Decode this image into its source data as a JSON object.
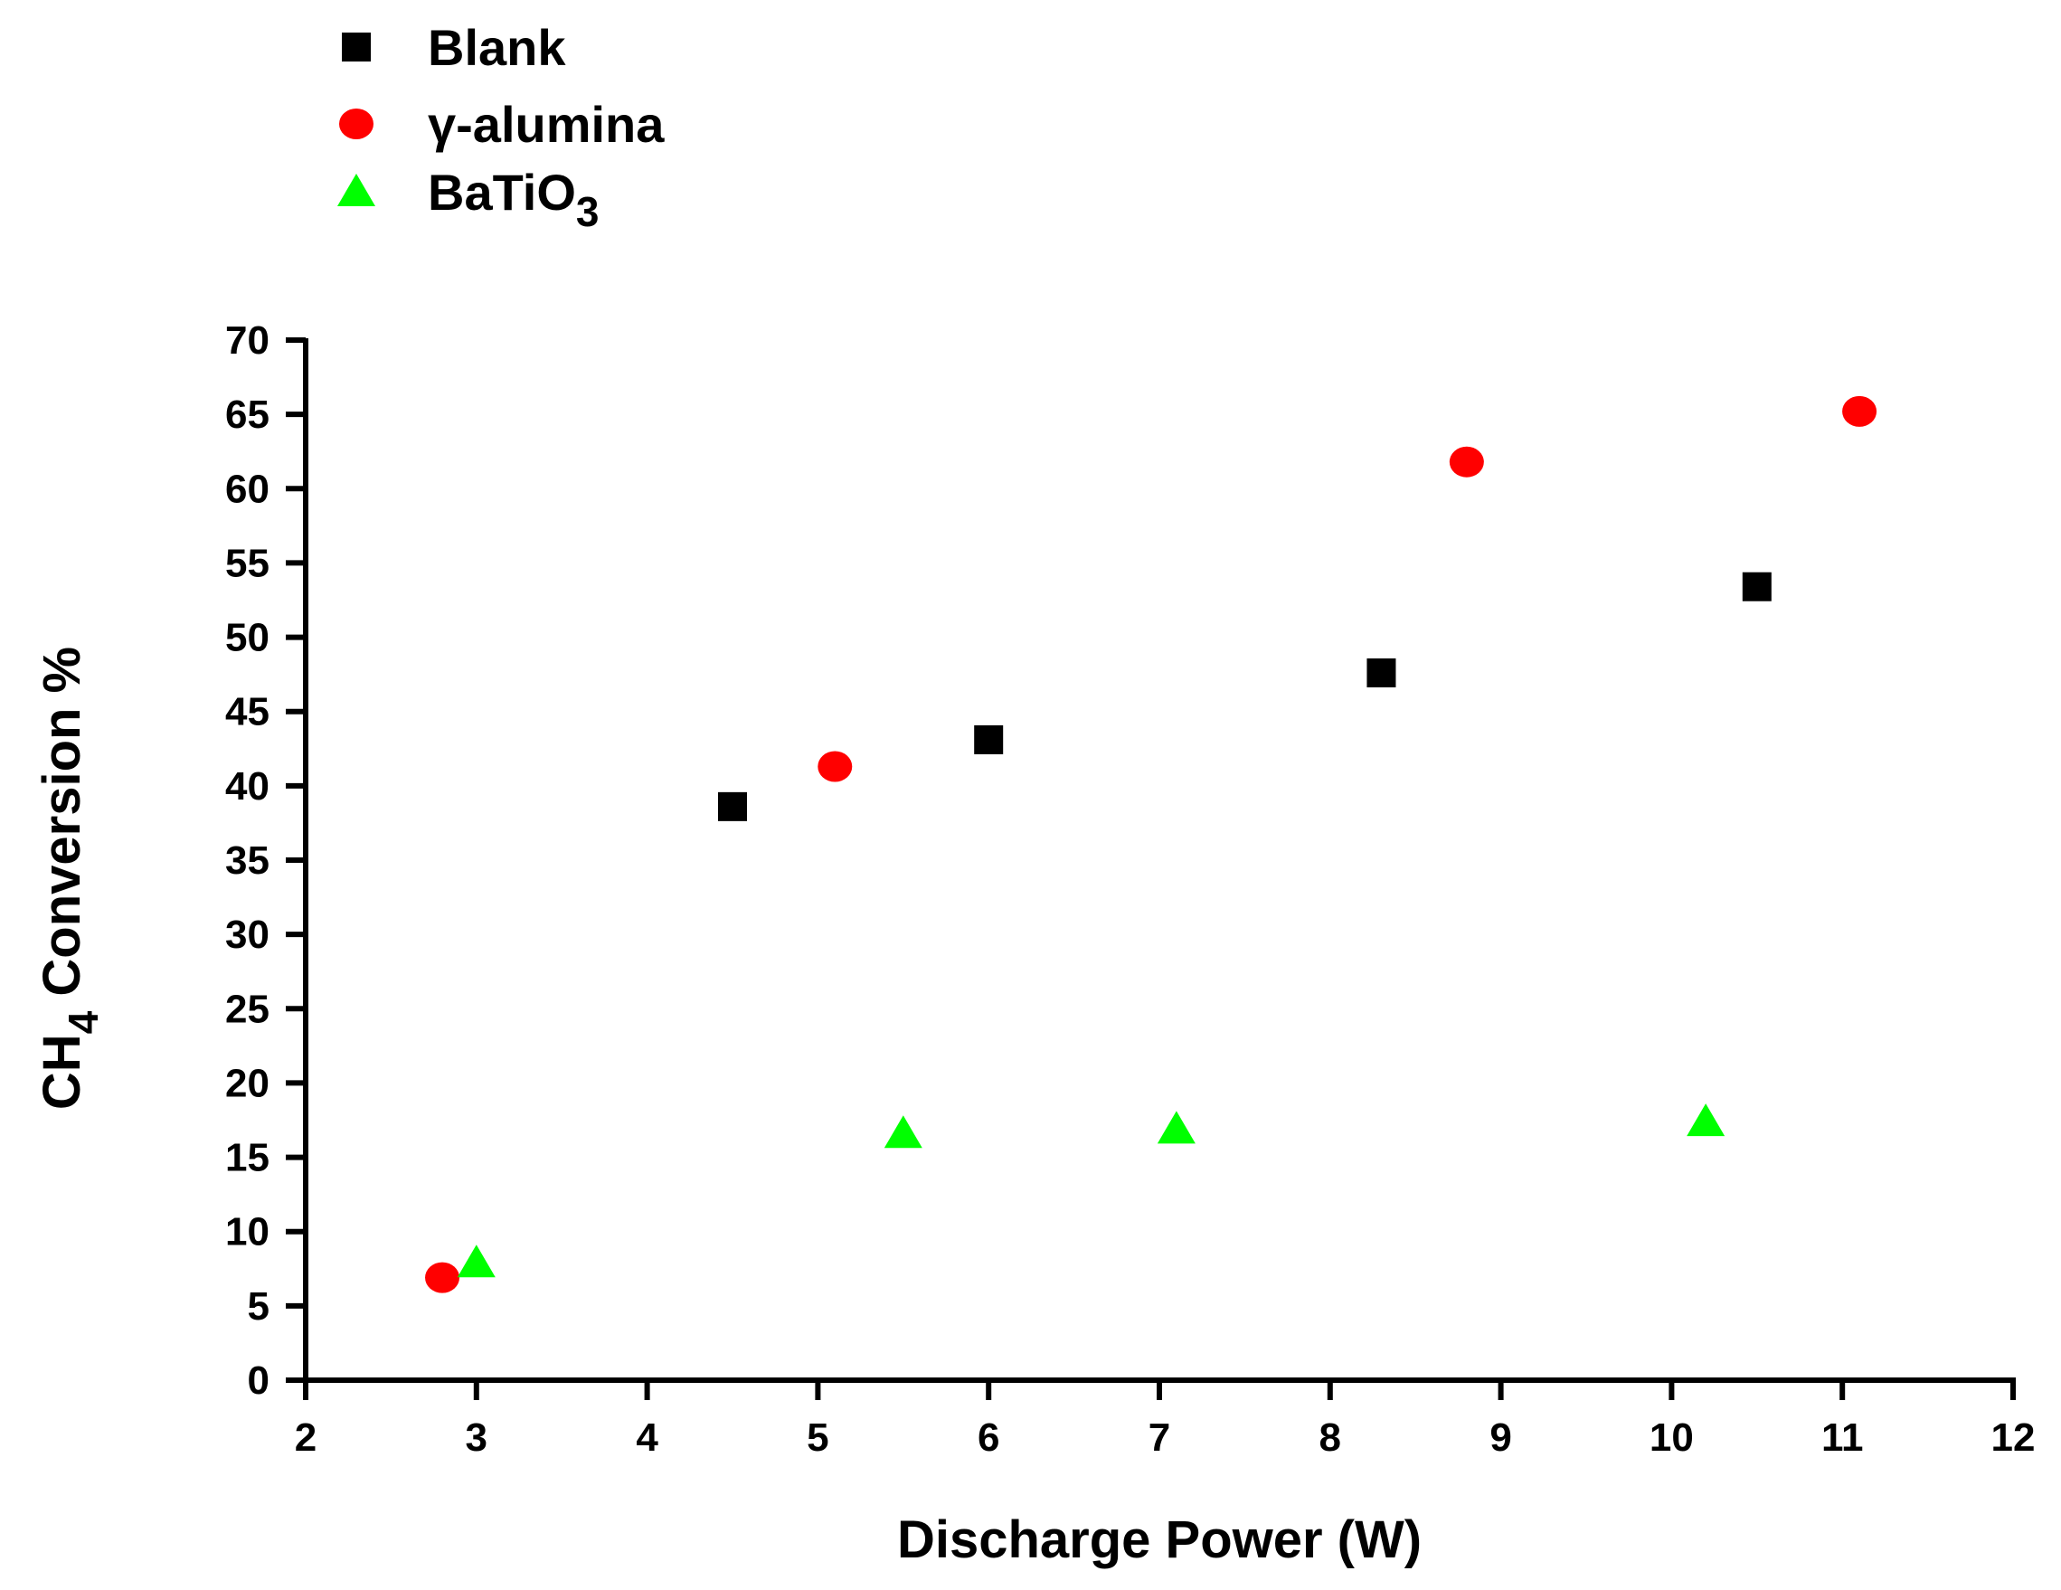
{
  "chart_data": {
    "type": "scatter",
    "title": "",
    "xlabel": "Discharge Power (W)",
    "ylabel": {
      "main": "CH",
      "sub": "4",
      "rest": " Conversion %"
    },
    "xlim": [
      2,
      12
    ],
    "ylim": [
      0,
      70
    ],
    "x_ticks": [
      "2",
      "3",
      "4",
      "5",
      "6",
      "7",
      "8",
      "9",
      "10",
      "11",
      "12"
    ],
    "y_ticks": [
      "0",
      "5",
      "10",
      "15",
      "20",
      "25",
      "30",
      "35",
      "40",
      "45",
      "50",
      "55",
      "60",
      "65",
      "70"
    ],
    "grid": false,
    "legend_position": "top-left",
    "series": [
      {
        "name": "Blank",
        "marker": "square",
        "color": "#000000",
        "points": [
          [
            4.5,
            38.6
          ],
          [
            6.0,
            43.1
          ],
          [
            8.3,
            47.6
          ],
          [
            10.5,
            53.4
          ]
        ]
      },
      {
        "name": "γ-alumina",
        "marker": "circle",
        "color": "#ff0000",
        "points": [
          [
            2.8,
            6.9
          ],
          [
            5.1,
            41.3
          ],
          [
            8.8,
            61.8
          ],
          [
            11.1,
            65.2
          ]
        ]
      },
      {
        "name": "BaTiO",
        "name_sub": "3",
        "marker": "triangle",
        "color": "#00ff00",
        "points": [
          [
            3.0,
            7.9
          ],
          [
            5.5,
            16.6
          ],
          [
            7.1,
            16.9
          ],
          [
            10.2,
            17.4
          ]
        ]
      }
    ]
  }
}
